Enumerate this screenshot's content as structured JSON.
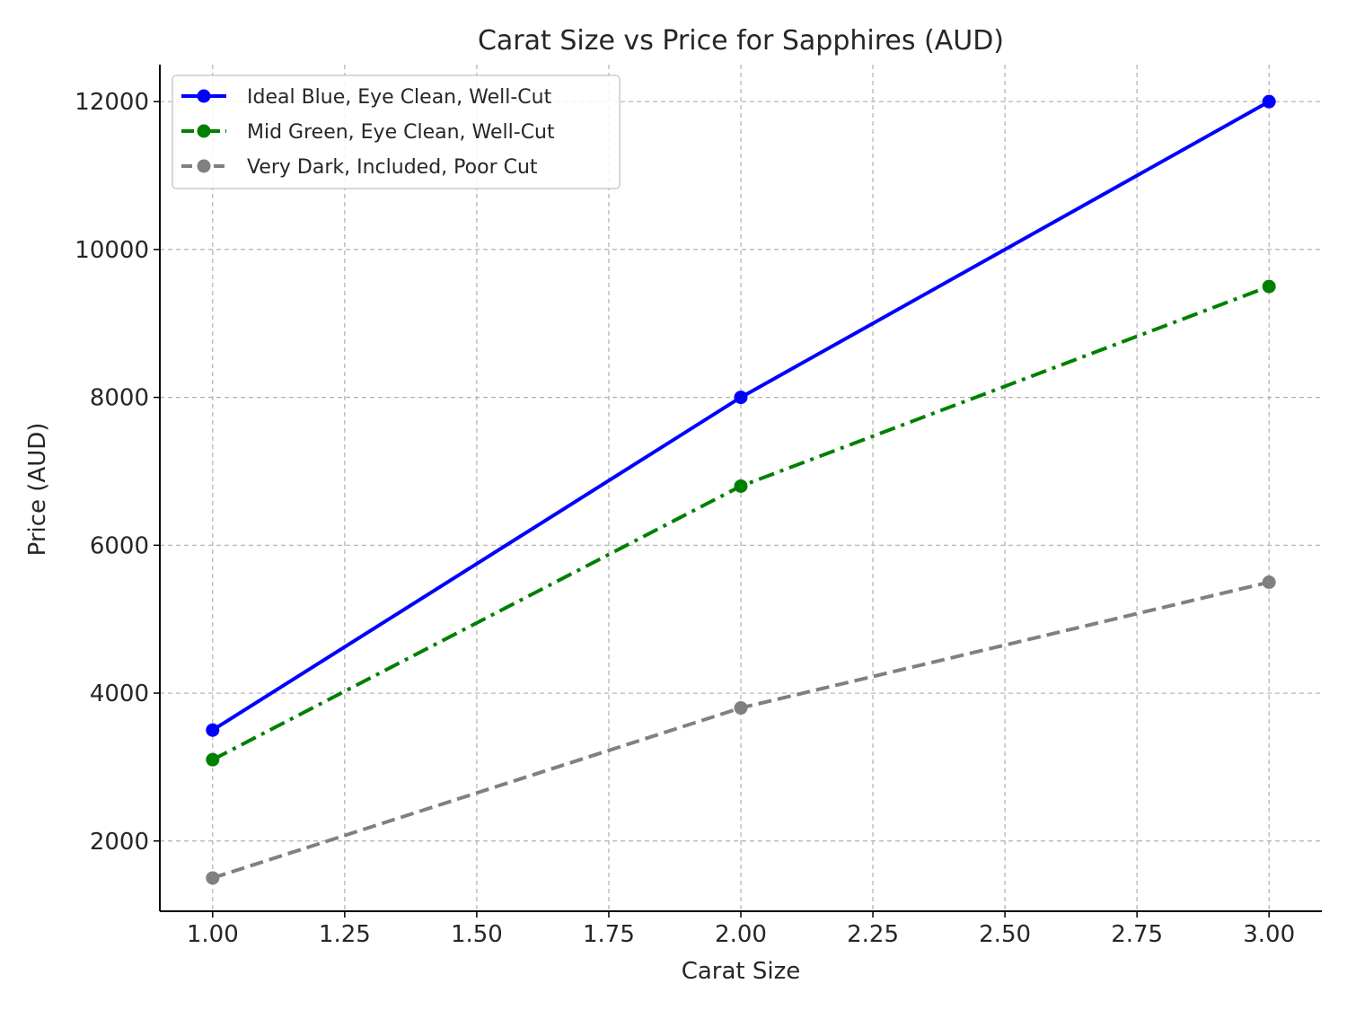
{
  "chart_data": {
    "type": "line",
    "title": "Carat Size vs Price for Sapphires (AUD)",
    "xlabel": "Carat Size",
    "ylabel": "Price (AUD)",
    "x": [
      1.0,
      2.0,
      3.0
    ],
    "xlim": [
      0.9,
      3.1
    ],
    "ylim": [
      1050,
      12500
    ],
    "xticks": [
      1.0,
      1.25,
      1.5,
      1.75,
      2.0,
      2.25,
      2.5,
      2.75,
      3.0
    ],
    "xtick_labels": [
      "1.00",
      "1.25",
      "1.50",
      "1.75",
      "2.00",
      "2.25",
      "2.50",
      "2.75",
      "3.00"
    ],
    "yticks": [
      2000,
      4000,
      6000,
      8000,
      10000,
      12000
    ],
    "ytick_labels": [
      "2000",
      "4000",
      "6000",
      "8000",
      "10000",
      "12000"
    ],
    "grid": true,
    "legend_position": "top-left",
    "series": [
      {
        "name": "Ideal Blue, Eye Clean, Well-Cut",
        "values": [
          3500,
          8000,
          12000
        ],
        "color": "#0000ff",
        "line_style": "solid",
        "marker": "circle"
      },
      {
        "name": "Mid Green, Eye Clean, Well-Cut",
        "values": [
          3100,
          6800,
          9500
        ],
        "color": "#008000",
        "line_style": "dash-dot",
        "marker": "circle"
      },
      {
        "name": "Very Dark, Included, Poor Cut",
        "values": [
          1500,
          3800,
          5500
        ],
        "color": "#808080",
        "line_style": "dashed",
        "marker": "circle"
      }
    ]
  }
}
